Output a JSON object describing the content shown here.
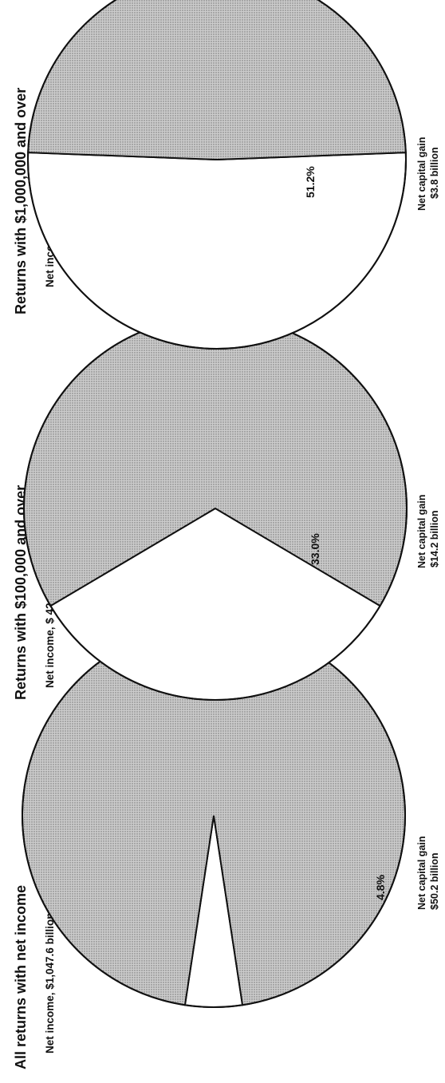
{
  "chart_data": [
    {
      "type": "pie",
      "title": "All returns with net income",
      "subtitle": "Net income, $1,047.6 billion",
      "slices": [
        {
          "label": "Net capital gain",
          "amount": "$50.2 billion",
          "value": 4.8,
          "value_label": "4.8%",
          "fill": "white"
        },
        {
          "label": "",
          "value": 95.2,
          "fill": "shaded"
        }
      ]
    },
    {
      "type": "pie",
      "title": "Returns with $100,000 and over",
      "subtitle": "Net income, $ 42.9 billion",
      "slices": [
        {
          "label": "Net capital gain",
          "amount": "$14.2 billion",
          "value": 33.0,
          "value_label": "33.0%",
          "fill": "white"
        },
        {
          "label": "",
          "value": 67.0,
          "fill": "shaded"
        }
      ]
    },
    {
      "type": "pie",
      "title": "Returns with $1,000,000 and over",
      "subtitle": "Net income, $7.4 billion",
      "slices": [
        {
          "label": "Net capital gain",
          "amount": "$3.8 billion",
          "value": 51.2,
          "value_label": "51.2%",
          "fill": "white"
        },
        {
          "label": "",
          "value": 48.8,
          "fill": "shaded"
        }
      ]
    }
  ],
  "colors": {
    "shaded": "#c9c9c9",
    "dots": "#6e6e6e",
    "outline": "#111111",
    "white": "#ffffff"
  }
}
